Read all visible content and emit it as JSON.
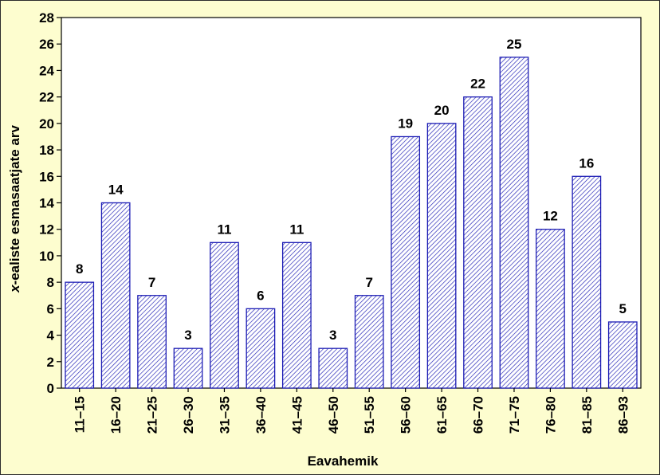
{
  "chart_data": {
    "type": "bar",
    "categories": [
      "11–15",
      "16–20",
      "21–25",
      "26–30",
      "31–35",
      "36–40",
      "41–45",
      "46–50",
      "51–55",
      "56–60",
      "61–65",
      "66–70",
      "71–75",
      "76–80",
      "81–85",
      "86–93"
    ],
    "values": [
      8,
      14,
      7,
      3,
      11,
      6,
      11,
      3,
      7,
      19,
      20,
      22,
      25,
      12,
      16,
      5
    ],
    "data_labels": [
      "8",
      "14",
      "7",
      "3",
      "11",
      "6",
      "11",
      "3",
      "7",
      "19",
      "20",
      "22",
      "25",
      "12",
      "16",
      "5"
    ],
    "xlabel": "Eavahemik",
    "ylabel_var": "x",
    "ylabel_rest": "-ealiste esmasaatjate arv",
    "ylim": [
      0,
      28
    ],
    "yticks": [
      0,
      2,
      4,
      6,
      8,
      10,
      12,
      14,
      16,
      18,
      20,
      22,
      24,
      26,
      28
    ],
    "ytick_labels": [
      "0",
      "2",
      "4",
      "6",
      "8",
      "10",
      "12",
      "14",
      "16",
      "18",
      "20",
      "22",
      "24",
      "26",
      "28"
    ],
    "grid": false,
    "legend": "none",
    "colors": {
      "background": "#fdfdcf",
      "plot_background": "#ffffff",
      "bar_edge": "#1c1cb4",
      "bar_hatch": "#1c1cb4",
      "axis": "#000000"
    }
  }
}
